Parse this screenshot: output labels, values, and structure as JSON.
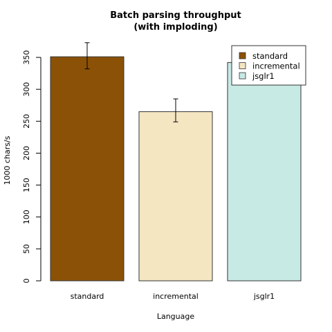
{
  "chart_data": {
    "type": "bar",
    "title": [
      "Batch parsing throughput",
      "(with imploding)"
    ],
    "xlabel": "Language",
    "ylabel": "1000 chars/s",
    "categories": [
      "standard",
      "incremental",
      "jsglr1"
    ],
    "values": [
      351,
      265,
      342
    ],
    "errors": [
      [
        332,
        373
      ],
      [
        249,
        285
      ],
      [
        null,
        null
      ]
    ],
    "colors": [
      "#8B5207",
      "#F5E6C2",
      "#C8EAE4"
    ],
    "ylim": [
      0,
      350
    ],
    "yticks": [
      0,
      50,
      100,
      150,
      200,
      250,
      300,
      350
    ],
    "legend": {
      "position": "top-right",
      "entries": [
        "standard",
        "incremental",
        "jsglr1"
      ]
    },
    "grid": false
  }
}
